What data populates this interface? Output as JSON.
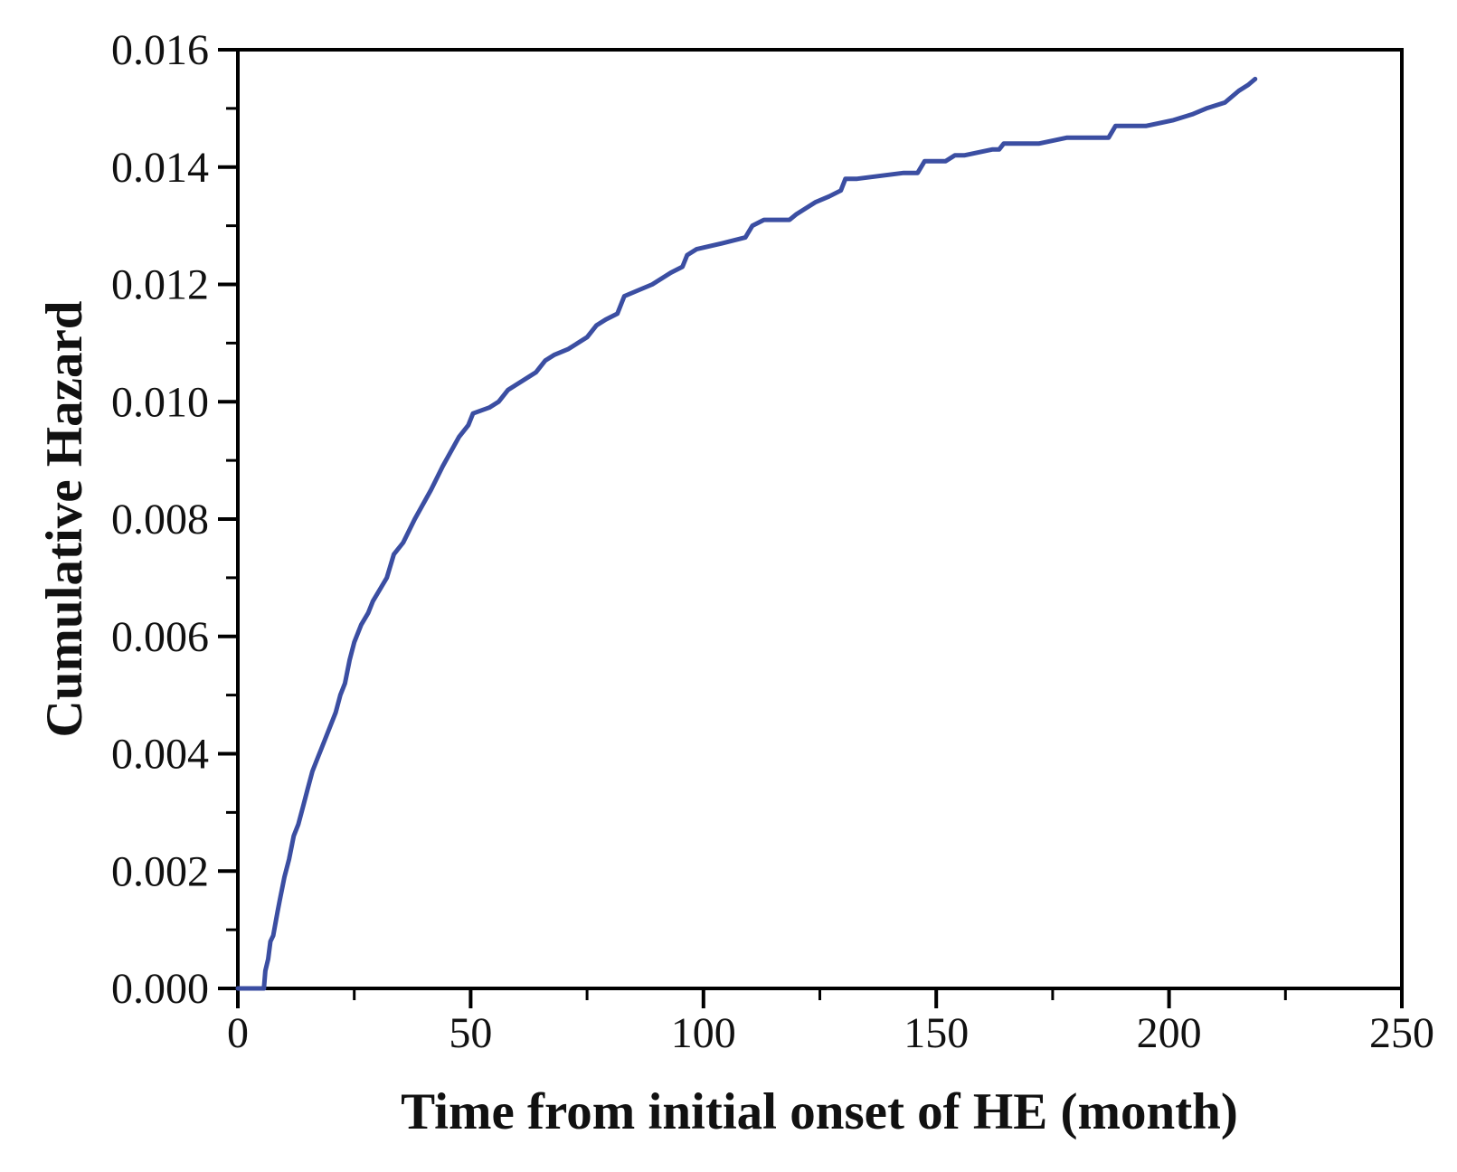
{
  "figure": {
    "background": "#ffffff"
  },
  "chart_data": {
    "type": "line",
    "title": "",
    "xlabel": "Time from initial onset of HE (month)",
    "ylabel": "Cumulative Hazard",
    "xlim": [
      0,
      250
    ],
    "ylim": [
      0,
      0.016
    ],
    "grid": false,
    "legend": "none",
    "frame": true,
    "axis_color": "#000000",
    "line_color": "#3B4EA2",
    "x_ticks": [
      {
        "value": 0,
        "label": "0"
      },
      {
        "value": 50,
        "label": "50"
      },
      {
        "value": 100,
        "label": "100"
      },
      {
        "value": 150,
        "label": "150"
      },
      {
        "value": 200,
        "label": "200"
      },
      {
        "value": 250,
        "label": "250"
      }
    ],
    "x_minor_ticks": [
      25,
      75,
      125,
      175,
      225
    ],
    "y_ticks": [
      {
        "value": 0.0,
        "label": "0.000"
      },
      {
        "value": 0.002,
        "label": "0.002"
      },
      {
        "value": 0.004,
        "label": "0.004"
      },
      {
        "value": 0.006,
        "label": "0.006"
      },
      {
        "value": 0.008,
        "label": "0.008"
      },
      {
        "value": 0.01,
        "label": "0.010"
      },
      {
        "value": 0.012,
        "label": "0.012"
      },
      {
        "value": 0.014,
        "label": "0.014"
      },
      {
        "value": 0.016,
        "label": "0.016"
      }
    ],
    "y_minor_ticks": [
      0.001,
      0.003,
      0.005,
      0.007,
      0.009,
      0.011,
      0.013,
      0.015
    ],
    "series": [
      {
        "name": "cumulative-hazard-curve",
        "color": "#3B4EA2",
        "points": [
          [
            0,
            0
          ],
          [
            5.6,
            0
          ],
          [
            5.9,
            0.0003
          ],
          [
            6.5,
            0.0005
          ],
          [
            7,
            0.0008
          ],
          [
            7.6,
            0.0009
          ],
          [
            8.5,
            0.0013
          ],
          [
            9,
            0.0015
          ],
          [
            10,
            0.0019
          ],
          [
            11,
            0.0022
          ],
          [
            12,
            0.0026
          ],
          [
            13,
            0.0028
          ],
          [
            14,
            0.0031
          ],
          [
            15,
            0.0034
          ],
          [
            16,
            0.0037
          ],
          [
            17,
            0.0039
          ],
          [
            18,
            0.0041
          ],
          [
            19.5,
            0.0044
          ],
          [
            21,
            0.0047
          ],
          [
            22,
            0.005
          ],
          [
            23,
            0.0052
          ],
          [
            24,
            0.0056
          ],
          [
            25,
            0.0059
          ],
          [
            26.5,
            0.0062
          ],
          [
            28,
            0.0064
          ],
          [
            29,
            0.0066
          ],
          [
            30.5,
            0.0068
          ],
          [
            32,
            0.007
          ],
          [
            33.5,
            0.0074
          ],
          [
            35.5,
            0.0076
          ],
          [
            38,
            0.008
          ],
          [
            41.5,
            0.0085
          ],
          [
            44,
            0.0089
          ],
          [
            47.5,
            0.0094
          ],
          [
            49.5,
            0.0096
          ],
          [
            50.5,
            0.0098
          ],
          [
            54,
            0.0099
          ],
          [
            56,
            0.01
          ],
          [
            58,
            0.0102
          ],
          [
            62,
            0.0104
          ],
          [
            64,
            0.0105
          ],
          [
            66,
            0.0107
          ],
          [
            68,
            0.0108
          ],
          [
            71,
            0.0109
          ],
          [
            73,
            0.011
          ],
          [
            75,
            0.0111
          ],
          [
            77,
            0.0113
          ],
          [
            79,
            0.0114
          ],
          [
            81.5,
            0.0115
          ],
          [
            83,
            0.0118
          ],
          [
            86,
            0.0119
          ],
          [
            89,
            0.012
          ],
          [
            93,
            0.0122
          ],
          [
            95.5,
            0.0123
          ],
          [
            96.5,
            0.0125
          ],
          [
            98.5,
            0.0126
          ],
          [
            104,
            0.0127
          ],
          [
            109,
            0.0128
          ],
          [
            110.5,
            0.013
          ],
          [
            113,
            0.0131
          ],
          [
            118.5,
            0.0131
          ],
          [
            120,
            0.0132
          ],
          [
            124,
            0.0134
          ],
          [
            127,
            0.0135
          ],
          [
            129.5,
            0.0136
          ],
          [
            130.5,
            0.0138
          ],
          [
            133,
            0.0138
          ],
          [
            143,
            0.0139
          ],
          [
            146,
            0.0139
          ],
          [
            147.5,
            0.0141
          ],
          [
            152,
            0.0141
          ],
          [
            154,
            0.0142
          ],
          [
            156,
            0.0142
          ],
          [
            162,
            0.0143
          ],
          [
            163.5,
            0.0143
          ],
          [
            164.5,
            0.0144
          ],
          [
            172,
            0.0144
          ],
          [
            178,
            0.0145
          ],
          [
            187,
            0.0145
          ],
          [
            188.5,
            0.0147
          ],
          [
            195,
            0.0147
          ],
          [
            201,
            0.0148
          ],
          [
            205,
            0.0149
          ],
          [
            208,
            0.015
          ],
          [
            212,
            0.0151
          ],
          [
            215,
            0.0153
          ],
          [
            217,
            0.0154
          ],
          [
            218.5,
            0.0155
          ]
        ]
      }
    ]
  }
}
